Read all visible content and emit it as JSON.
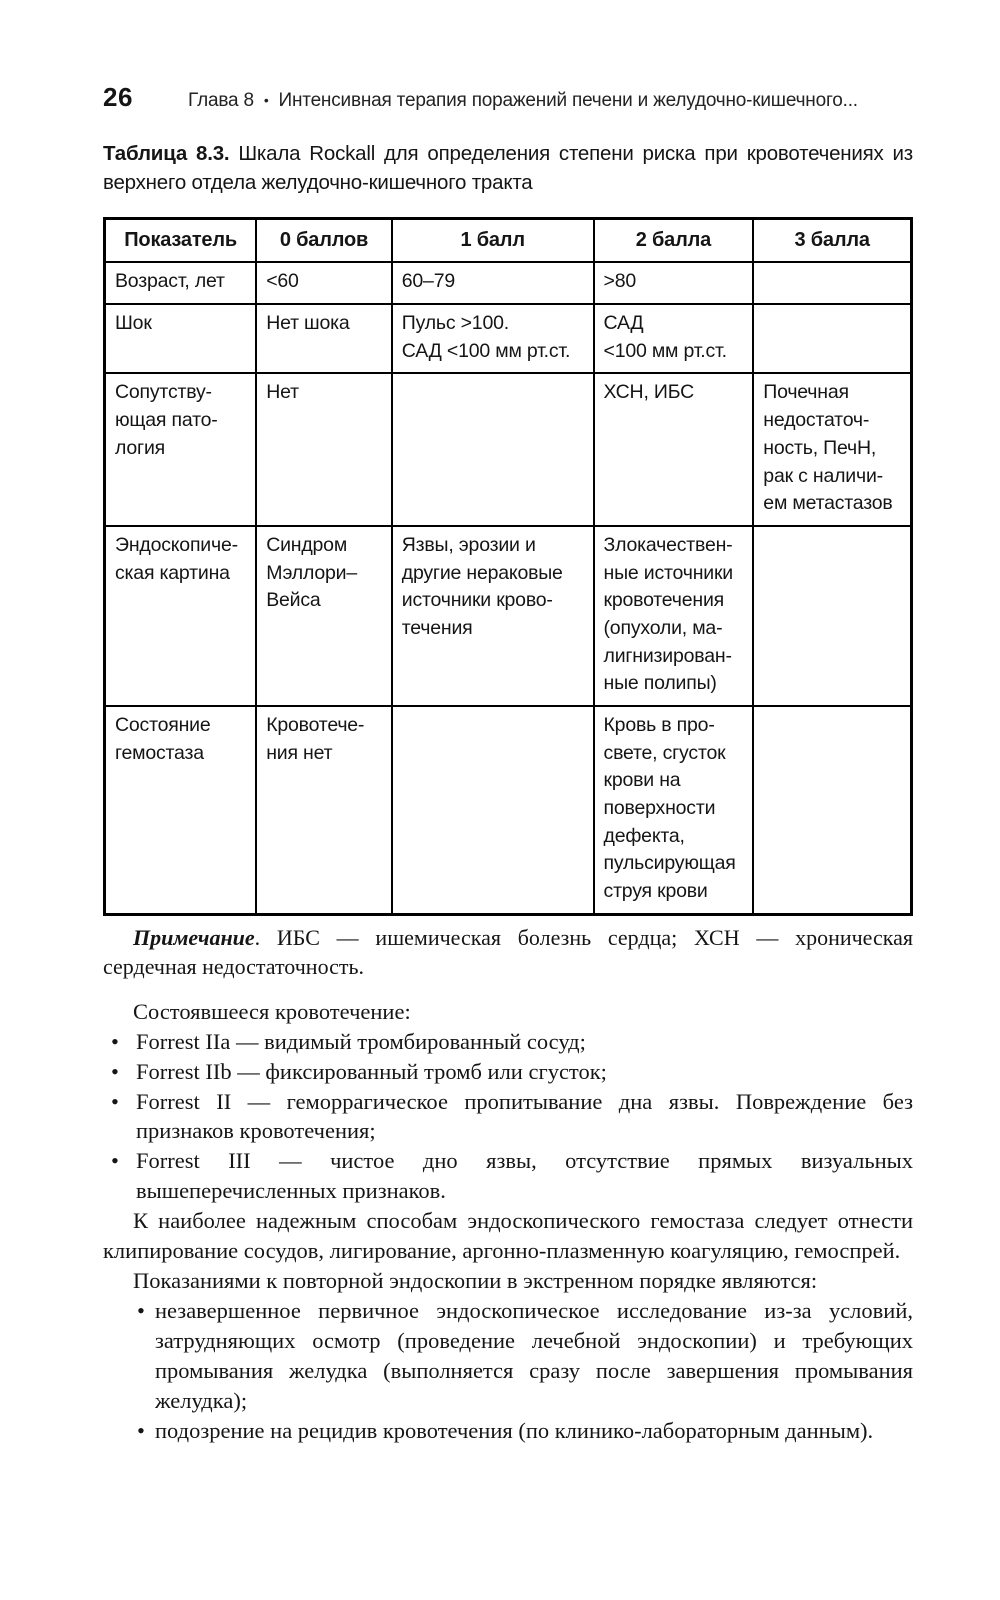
{
  "header": {
    "page_number": "26",
    "chapter": "Глава 8",
    "separator": "•",
    "title": "Интенсивная терапия поражений печени и желудочно-кишечного..."
  },
  "caption": {
    "label": "Таблица 8.3.",
    "text": " Шкала Rockall для определения степени риска при кровотечениях из верхнего отдела желудочно-кишечного тракта"
  },
  "table": {
    "headers": [
      "Показатель",
      "0 баллов",
      "1 балл",
      "2 балла",
      "3 балла"
    ],
    "rows": [
      [
        "Возраст, лет",
        "<60",
        "60–79",
        ">80",
        ""
      ],
      [
        "Шок",
        "Нет шока",
        "Пульс >100.\nСАД <100 мм рт.ст.",
        "САД\n<100 мм рт.ст.",
        ""
      ],
      [
        "Сопутству-\nющая пато-\nлогия",
        "Нет",
        "",
        "ХСН, ИБС",
        "Почечная\nнедостаточ-\nность, ПечН,\nрак с наличи-\nем метастазов"
      ],
      [
        "Эндоскопиче-\nская картина",
        "Синдром\nМэллори–\nВейса",
        "Язвы, эрозии и\nдругие нераковые\nисточники крово-\nтечения",
        "Злокачествен-\nные источники\nкровотечения\n(опухоли, ма-\nлигнизирован-\nные полипы)",
        ""
      ],
      [
        "Состояние\nгемостаза",
        "Кровотече-\nния нет",
        "",
        "Кровь в про-\nсвете, сгусток\nкрови на\nповерхности\nдефекта,\nпульсирующая\nструя крови",
        ""
      ]
    ]
  },
  "note": {
    "label": "Примечание",
    "text": ". ИБС — ишемическая болезнь сердца; ХСН — хроническая сердечная недостаточность."
  },
  "body": {
    "intro": "Состоявшееся кровотечение:",
    "forrest_items": [
      "Forrest IIa — видимый тромбированный сосуд;",
      "Forrest IIb — фиксированный тромб или сгусток;",
      "Forrest II — геморрагическое пропитывание дна язвы. Повреждение без признаков кровотечения;",
      "Forrest III — чистое дно язвы, отсутствие прямых визуальных вышеперечисленных признаков."
    ],
    "para_hemostasis": "К наиболее надежным способам эндоскопического гемостаза следует отнести клипирование сосудов, лигирование, аргонно-плазменную коагуляцию, гемоспрей.",
    "para_indications": "Показаниями к повторной эндоскопии в экстренном порядке являются:",
    "indication_items": [
      "незавершенное первичное эндоскопическое исследование из-за условий, затрудняющих осмотр (проведение лечебной эндоскопии) и требующих промывания желудка (выполняется сразу после завершения промывания желудка);",
      "подозрение на рецидив кровотечения (по клинико-лабораторным данным)."
    ]
  }
}
